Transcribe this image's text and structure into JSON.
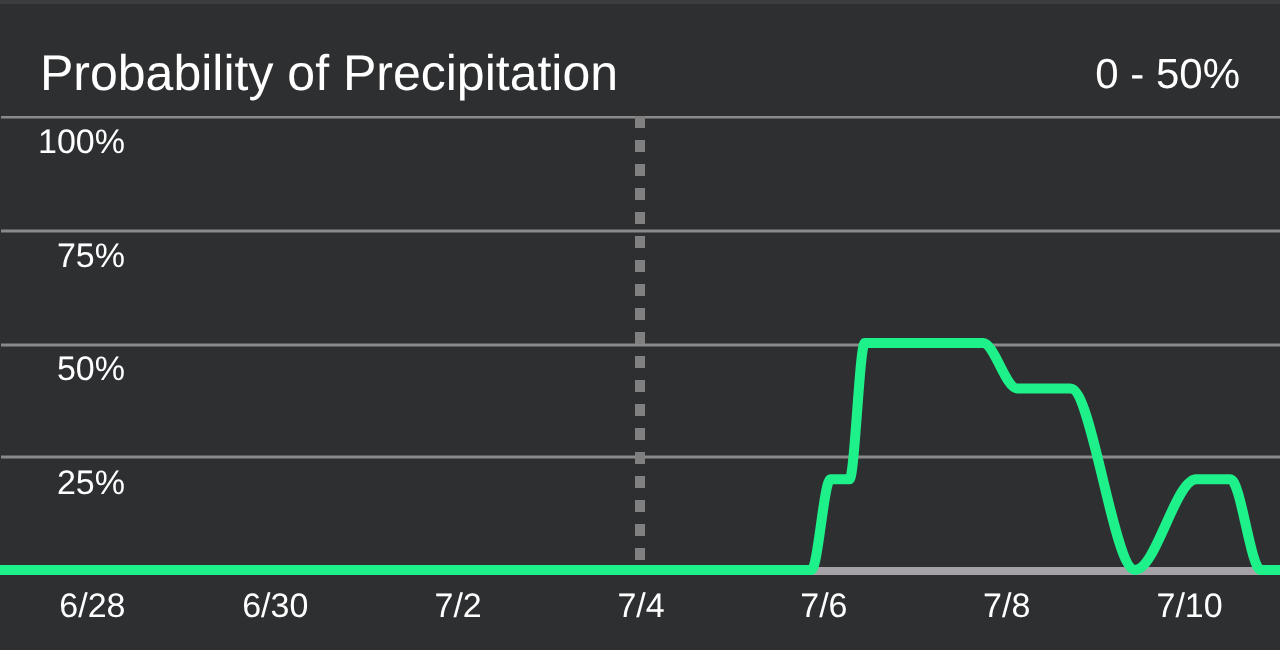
{
  "chart_data": {
    "type": "line",
    "title": "Probability of Precipitation",
    "subtitle": "0 - 50%",
    "x": [
      "--06-27T00:00",
      "--07-05T21:00",
      "--07-06T02:00",
      "--07-06T07:00",
      "--07-06T11:00",
      "--07-07T18:00",
      "--07-08T03:00",
      "--07-08T17:00",
      "--07-09T10:00",
      "--07-10T02:00",
      "--07-10T11:00",
      "--07-10T19:00",
      "--07-11T00:00"
    ],
    "series": [
      {
        "color": "#1ef08a",
        "values": [
          0,
          0,
          20,
          20,
          50,
          50,
          40,
          40,
          0,
          20,
          20,
          0,
          0
        ]
      }
    ],
    "xlim": [
      "--06-27T00:00",
      "--07-11T00:00"
    ],
    "xticks": [
      {
        "value": "--06-28",
        "label": "6/28"
      },
      {
        "value": "--06-30",
        "label": "6/30"
      },
      {
        "value": "--07-02",
        "label": "7/2"
      },
      {
        "value": "--07-04",
        "label": "7/4"
      },
      {
        "value": "--07-06",
        "label": "7/6"
      },
      {
        "value": "--07-08",
        "label": "7/8"
      },
      {
        "value": "--07-10",
        "label": "7/10"
      }
    ],
    "ylim": [
      0,
      100
    ],
    "yticks": [
      {
        "value": 25,
        "label": "25%"
      },
      {
        "value": 50,
        "label": "50%"
      },
      {
        "value": 75,
        "label": "75%"
      },
      {
        "value": 100,
        "label": "100%"
      }
    ],
    "grid": "y",
    "ref_lines": [
      {
        "axis": "x",
        "value": "--07-04",
        "color": "#808080",
        "line_style": "dashed"
      }
    ]
  }
}
